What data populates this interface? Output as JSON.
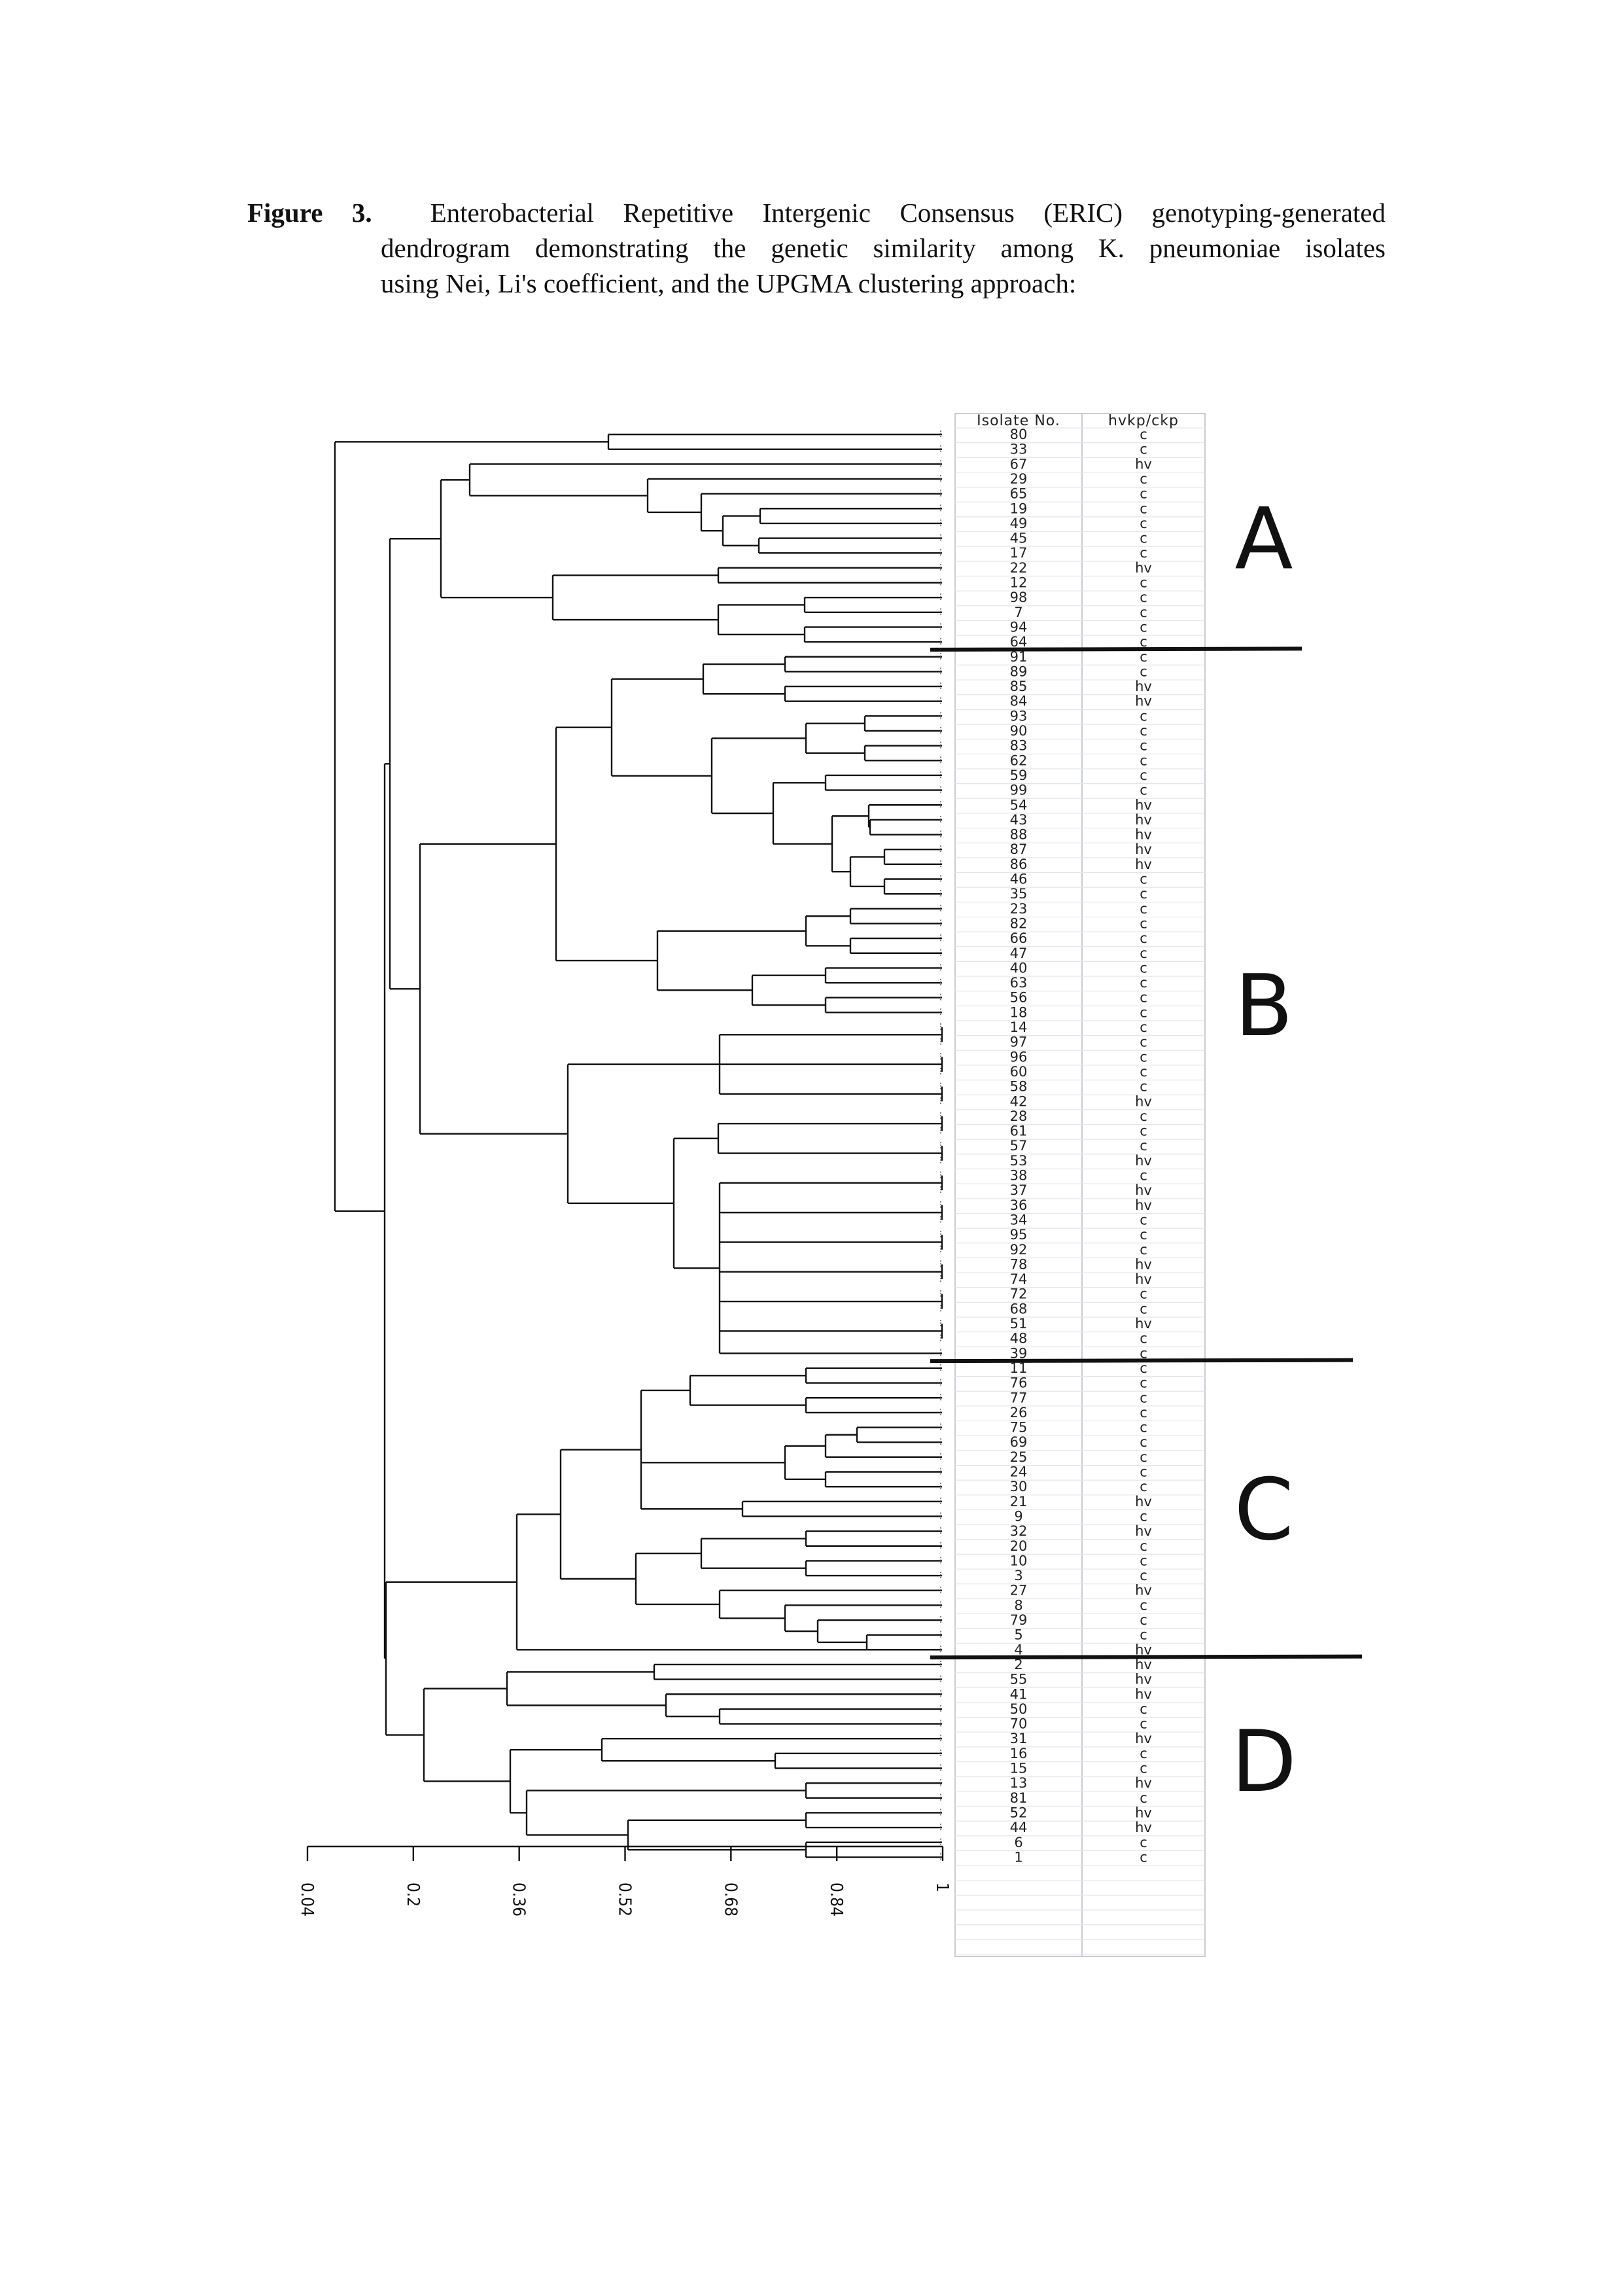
{
  "caption": {
    "label": "Figure 3.",
    "text": "Enterobacterial Repetitive Intergenic Consensus (ERIC) genotyping-generated dendrogram demonstrating the genetic similarity among K. pneumoniae isolates using Nei, Li's coefficient, and the UPGMA clustering approach:",
    "line1": "Enterobacterial Repetitive Intergenic Consensus (ERIC) genotyping-generated",
    "line2": "dendrogram demonstrating the genetic similarity among K. pneumoniae isolates",
    "line3": "using Nei, Li's coefficient, and the UPGMA clustering approach:"
  },
  "chart_data": {
    "type": "dendrogram",
    "method": "UPGMA",
    "coefficient": "Nei, Li's",
    "x_axis": {
      "ticks": [
        "0.04",
        "0.2",
        "0.36",
        "0.52",
        "0.68",
        "0.84",
        "1"
      ],
      "range": [
        0.04,
        1
      ]
    },
    "table_headers": [
      "Isolate No.",
      "hvkp/ckp"
    ],
    "isolates": [
      {
        "id": "80",
        "type": "c"
      },
      {
        "id": "33",
        "type": "c"
      },
      {
        "id": "67",
        "type": "hv"
      },
      {
        "id": "29",
        "type": "c"
      },
      {
        "id": "65",
        "type": "c"
      },
      {
        "id": "19",
        "type": "c"
      },
      {
        "id": "49",
        "type": "c"
      },
      {
        "id": "45",
        "type": "c"
      },
      {
        "id": "17",
        "type": "c"
      },
      {
        "id": "22",
        "type": "hv"
      },
      {
        "id": "12",
        "type": "c"
      },
      {
        "id": "98",
        "type": "c"
      },
      {
        "id": "7",
        "type": "c"
      },
      {
        "id": "94",
        "type": "c"
      },
      {
        "id": "64",
        "type": "c"
      },
      {
        "id": "91",
        "type": "c"
      },
      {
        "id": "89",
        "type": "c"
      },
      {
        "id": "85",
        "type": "hv"
      },
      {
        "id": "84",
        "type": "hv"
      },
      {
        "id": "93",
        "type": "c"
      },
      {
        "id": "90",
        "type": "c"
      },
      {
        "id": "83",
        "type": "c"
      },
      {
        "id": "62",
        "type": "c"
      },
      {
        "id": "59",
        "type": "c"
      },
      {
        "id": "99",
        "type": "c"
      },
      {
        "id": "54",
        "type": "hv"
      },
      {
        "id": "43",
        "type": "hv"
      },
      {
        "id": "88",
        "type": "hv"
      },
      {
        "id": "87",
        "type": "hv"
      },
      {
        "id": "86",
        "type": "hv"
      },
      {
        "id": "46",
        "type": "c"
      },
      {
        "id": "35",
        "type": "c"
      },
      {
        "id": "23",
        "type": "c"
      },
      {
        "id": "82",
        "type": "c"
      },
      {
        "id": "66",
        "type": "c"
      },
      {
        "id": "47",
        "type": "c"
      },
      {
        "id": "40",
        "type": "c"
      },
      {
        "id": "63",
        "type": "c"
      },
      {
        "id": "56",
        "type": "c"
      },
      {
        "id": "18",
        "type": "c"
      },
      {
        "id": "14",
        "type": "c"
      },
      {
        "id": "97",
        "type": "c"
      },
      {
        "id": "96",
        "type": "c"
      },
      {
        "id": "60",
        "type": "c"
      },
      {
        "id": "58",
        "type": "c"
      },
      {
        "id": "42",
        "type": "hv"
      },
      {
        "id": "28",
        "type": "c"
      },
      {
        "id": "61",
        "type": "c"
      },
      {
        "id": "57",
        "type": "c"
      },
      {
        "id": "53",
        "type": "hv"
      },
      {
        "id": "38",
        "type": "c"
      },
      {
        "id": "37",
        "type": "hv"
      },
      {
        "id": "36",
        "type": "hv"
      },
      {
        "id": "34",
        "type": "c"
      },
      {
        "id": "95",
        "type": "c"
      },
      {
        "id": "92",
        "type": "c"
      },
      {
        "id": "78",
        "type": "hv"
      },
      {
        "id": "74",
        "type": "hv"
      },
      {
        "id": "72",
        "type": "c"
      },
      {
        "id": "68",
        "type": "c"
      },
      {
        "id": "51",
        "type": "hv"
      },
      {
        "id": "48",
        "type": "c"
      },
      {
        "id": "39",
        "type": "c"
      },
      {
        "id": "11",
        "type": "c"
      },
      {
        "id": "76",
        "type": "c"
      },
      {
        "id": "77",
        "type": "c"
      },
      {
        "id": "26",
        "type": "c"
      },
      {
        "id": "75",
        "type": "c"
      },
      {
        "id": "69",
        "type": "c"
      },
      {
        "id": "25",
        "type": "c"
      },
      {
        "id": "24",
        "type": "c"
      },
      {
        "id": "30",
        "type": "c"
      },
      {
        "id": "21",
        "type": "hv"
      },
      {
        "id": "9",
        "type": "c"
      },
      {
        "id": "32",
        "type": "hv"
      },
      {
        "id": "20",
        "type": "c"
      },
      {
        "id": "10",
        "type": "c"
      },
      {
        "id": "3",
        "type": "c"
      },
      {
        "id": "27",
        "type": "hv"
      },
      {
        "id": "8",
        "type": "c"
      },
      {
        "id": "79",
        "type": "c"
      },
      {
        "id": "5",
        "type": "c"
      },
      {
        "id": "4",
        "type": "hv"
      },
      {
        "id": "2",
        "type": "hv"
      },
      {
        "id": "55",
        "type": "hv"
      },
      {
        "id": "41",
        "type": "hv"
      },
      {
        "id": "50",
        "type": "c"
      },
      {
        "id": "70",
        "type": "c"
      },
      {
        "id": "31",
        "type": "hv"
      },
      {
        "id": "16",
        "type": "c"
      },
      {
        "id": "15",
        "type": "c"
      },
      {
        "id": "13",
        "type": "hv"
      },
      {
        "id": "81",
        "type": "c"
      },
      {
        "id": "52",
        "type": "hv"
      },
      {
        "id": "44",
        "type": "hv"
      },
      {
        "id": "6",
        "type": "c"
      },
      {
        "id": "1",
        "type": "c"
      }
    ],
    "clusters": [
      {
        "label": "A",
        "first_isolate": "80",
        "last_isolate": "64"
      },
      {
        "label": "B",
        "first_isolate": "91",
        "last_isolate": "39"
      },
      {
        "label": "C",
        "first_isolate": "11",
        "last_isolate": "4"
      },
      {
        "label": "D",
        "first_isolate": "2",
        "last_isolate": "1"
      }
    ]
  }
}
